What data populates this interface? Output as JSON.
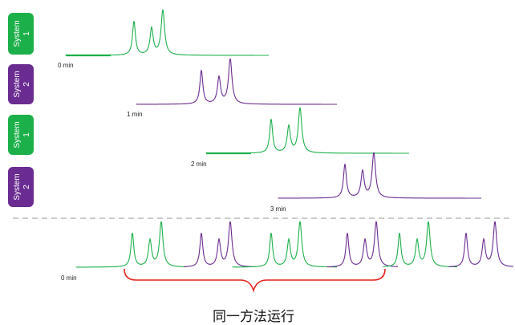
{
  "colors": {
    "system1": "#1cb04a",
    "system2": "#6b2c91",
    "brace": "#e32119",
    "divider": "#aaaaaa"
  },
  "systems": [
    {
      "id": "s1a",
      "line1": "System",
      "line2": "1",
      "color_key": "system1"
    },
    {
      "id": "s2a",
      "line1": "System",
      "line2": "2",
      "color_key": "system2"
    },
    {
      "id": "s1b",
      "line1": "System",
      "line2": "1",
      "color_key": "system1"
    },
    {
      "id": "s2b",
      "line1": "System",
      "line2": "2",
      "color_key": "system2"
    }
  ],
  "runs": [
    {
      "time_label": "0 min",
      "system": "system1"
    },
    {
      "time_label": "1 min",
      "system": "system2"
    },
    {
      "time_label": "2 min",
      "system": "system1"
    },
    {
      "time_label": "3 min",
      "system": "system2"
    }
  ],
  "combined": {
    "time_label": "0 min",
    "sequence": [
      "system1",
      "system2",
      "system1",
      "system2",
      "system1",
      "system2"
    ]
  },
  "caption": "同一方法运行"
}
